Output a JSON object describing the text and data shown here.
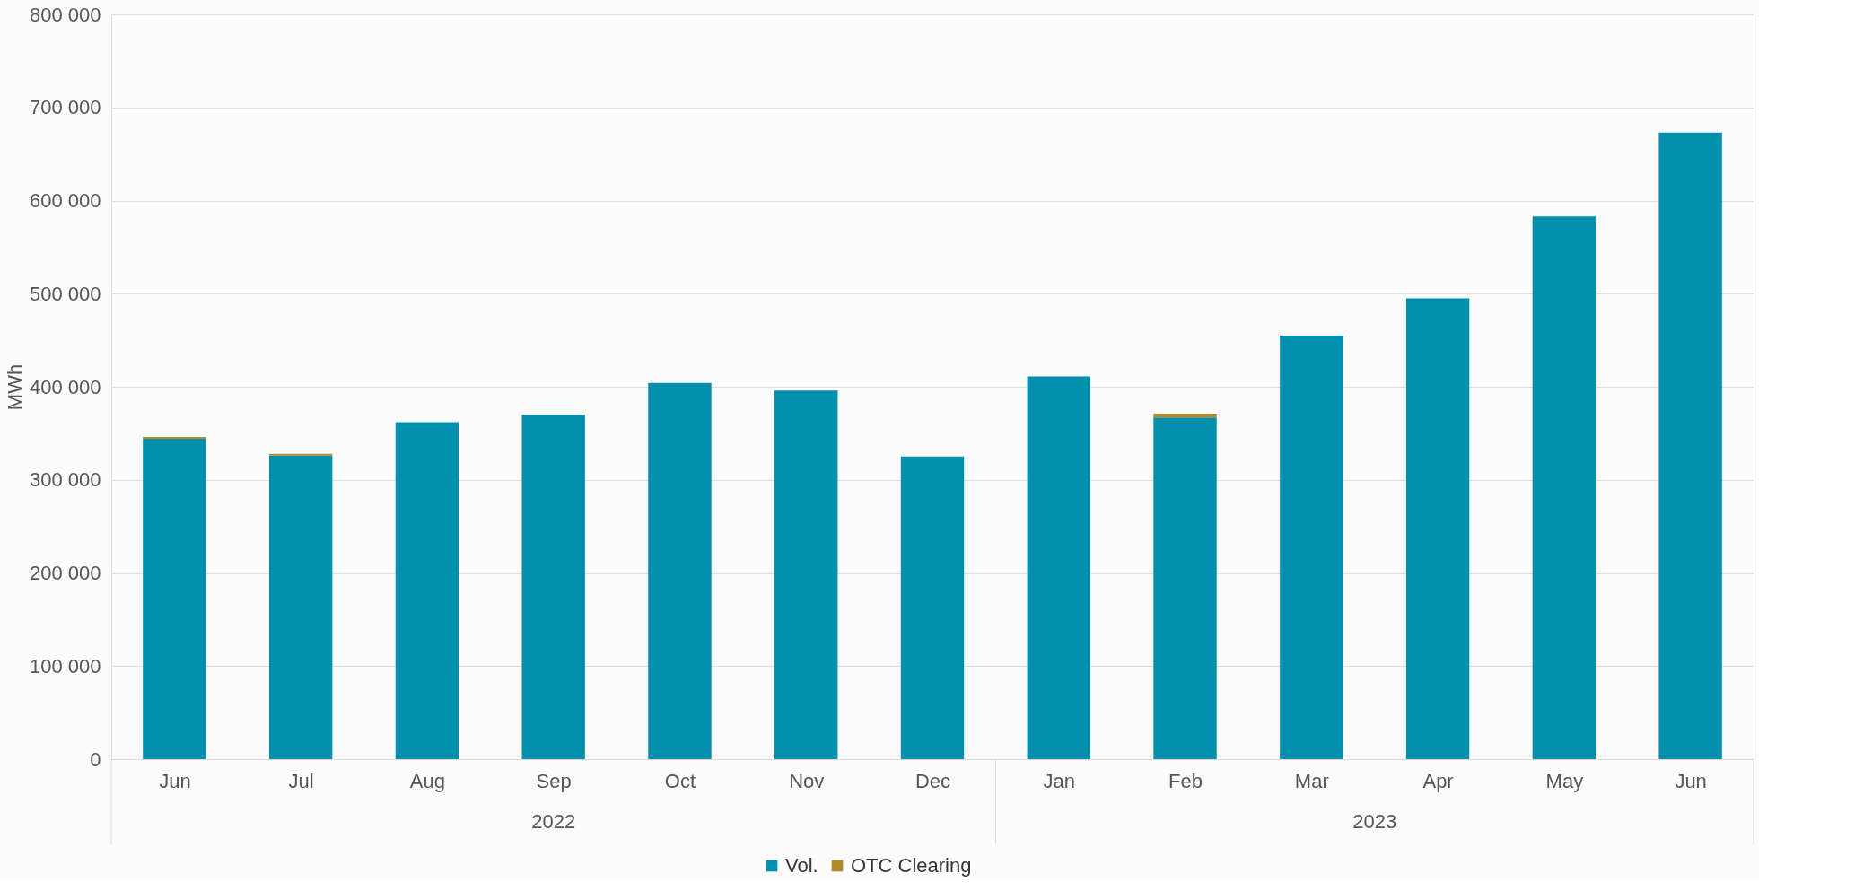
{
  "chart_data": {
    "type": "bar",
    "stacked": true,
    "ylabel": "MWh",
    "categories": [
      "Jun",
      "Jul",
      "Aug",
      "Sep",
      "Oct",
      "Nov",
      "Dec",
      "Jan",
      "Feb",
      "Mar",
      "Apr",
      "May",
      "Jun"
    ],
    "series": [
      {
        "name": "Vol.",
        "color": "#0090ad",
        "values": [
          344000,
          326000,
          362000,
          370000,
          404000,
          396000,
          325000,
          411000,
          367000,
          455000,
          495000,
          583000,
          673000
        ]
      },
      {
        "name": "OTC Clearing",
        "color": "#b08a2a",
        "values": [
          2000,
          2000,
          null,
          null,
          null,
          null,
          null,
          null,
          4000,
          null,
          null,
          null,
          null
        ]
      }
    ],
    "annotations": [
      "2022",
      "2023"
    ],
    "ylim": [
      0,
      800000
    ],
    "yticks": [
      {
        "value": 0,
        "label": "0"
      },
      {
        "value": 100000,
        "label": "100 000"
      },
      {
        "value": 200000,
        "label": "200 000"
      },
      {
        "value": 300000,
        "label": "300 000"
      },
      {
        "value": 400000,
        "label": "400 000"
      },
      {
        "value": 500000,
        "label": "500 000"
      },
      {
        "value": 600000,
        "label": "600 000"
      },
      {
        "value": 700000,
        "label": "700 000"
      },
      {
        "value": 800000,
        "label": "800 000"
      }
    ],
    "grid": "y",
    "legend": "bottom"
  }
}
